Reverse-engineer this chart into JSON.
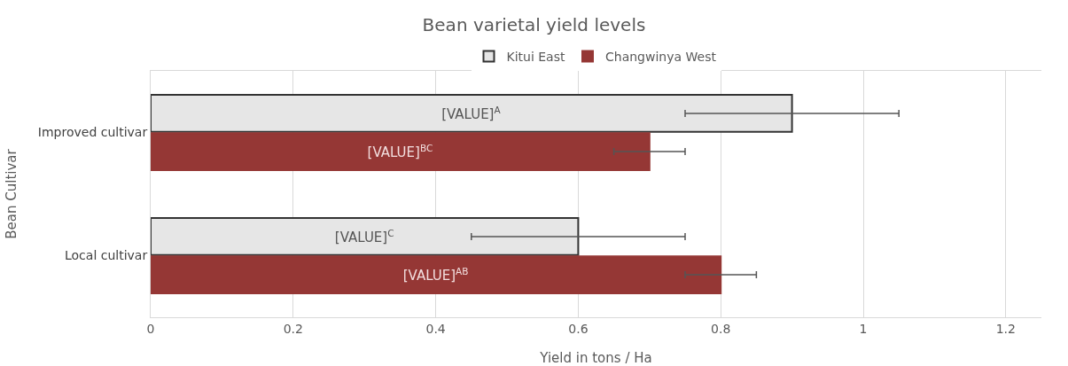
{
  "chart_data": {
    "type": "bar",
    "orientation": "horizontal",
    "title": "Bean varietal yield levels",
    "xlabel": "Yield in tons / Ha",
    "ylabel": "Bean Cultivar",
    "categories": [
      "Improved cultivar",
      "Local cultivar"
    ],
    "series": [
      {
        "name": "Kitui East",
        "color": "#e6e6e6",
        "values": [
          0.9,
          0.6
        ],
        "errors": [
          0.15,
          0.15
        ],
        "value_labels": [
          "[VALUE]$^{A}$",
          "[VALUE]$^{C}$"
        ]
      },
      {
        "name": "Changwinya West",
        "color": "#953735",
        "values": [
          0.7,
          0.8
        ],
        "errors": [
          0.05,
          0.05
        ],
        "value_labels": [
          "[VALUE]$^{BC}$",
          "[VALUE]$^{AB}$"
        ]
      }
    ],
    "xlim": [
      0,
      1.25
    ],
    "xticks": [
      0,
      0.2,
      0.4,
      0.6,
      0.8,
      1,
      1.2
    ],
    "grid": "x",
    "legend": "top"
  }
}
